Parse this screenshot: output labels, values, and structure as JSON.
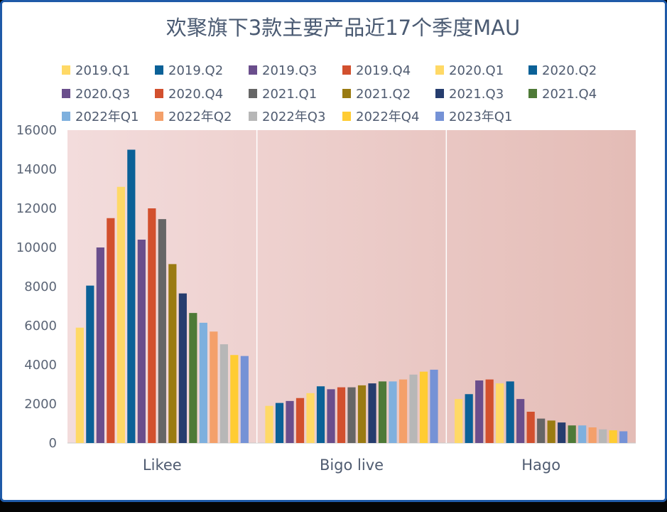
{
  "chart_data": {
    "type": "bar",
    "title": "欢聚旗下3款主要产品近17个季度MAU",
    "xlabel": "",
    "ylabel": "",
    "ylim": [
      0,
      16000
    ],
    "yticks": [
      0,
      2000,
      4000,
      6000,
      8000,
      10000,
      12000,
      14000,
      16000
    ],
    "categories": [
      "Likee",
      "Bigo live",
      "Hago"
    ],
    "legend_position": "top",
    "grid": false,
    "series": [
      {
        "name": "2019.Q1",
        "color": "#FFD966",
        "values": [
          5900,
          1900,
          2250
        ]
      },
      {
        "name": "2019.Q2",
        "color": "#0B6197",
        "values": [
          8050,
          2050,
          2500
        ]
      },
      {
        "name": "2019.Q3",
        "color": "#6A4E8C",
        "values": [
          10000,
          2150,
          3200
        ]
      },
      {
        "name": "2019.Q4",
        "color": "#D2502E",
        "values": [
          11500,
          2300,
          3250
        ]
      },
      {
        "name": "2020.Q1",
        "color": "#FFD966",
        "values": [
          13100,
          2550,
          3050
        ]
      },
      {
        "name": "2020.Q2",
        "color": "#0B6197",
        "values": [
          15000,
          2900,
          3150
        ]
      },
      {
        "name": "2020.Q3",
        "color": "#6A4E8C",
        "values": [
          10400,
          2750,
          2250
        ]
      },
      {
        "name": "2020.Q4",
        "color": "#D2502E",
        "values": [
          12000,
          2850,
          1600
        ]
      },
      {
        "name": "2021.Q1",
        "color": "#666666",
        "values": [
          11450,
          2850,
          1250
        ]
      },
      {
        "name": "2021.Q2",
        "color": "#9A7B12",
        "values": [
          9150,
          2950,
          1150
        ]
      },
      {
        "name": "2021.Q3",
        "color": "#263D6E",
        "values": [
          7650,
          3050,
          1050
        ]
      },
      {
        "name": "2021.Q4",
        "color": "#4E7A37",
        "values": [
          6650,
          3150,
          900
        ]
      },
      {
        "name": "2022年Q1",
        "color": "#7EB0DE",
        "values": [
          6150,
          3150,
          900
        ]
      },
      {
        "name": "2022年Q2",
        "color": "#F4A06A",
        "values": [
          5700,
          3250,
          800
        ]
      },
      {
        "name": "2022年Q3",
        "color": "#B7B7B7",
        "values": [
          5050,
          3500,
          700
        ]
      },
      {
        "name": "2022年Q4",
        "color": "#FFCC33",
        "values": [
          4500,
          3650,
          650
        ]
      },
      {
        "name": "2023年Q1",
        "color": "#7592D6",
        "values": [
          4450,
          3750,
          600
        ]
      }
    ]
  }
}
